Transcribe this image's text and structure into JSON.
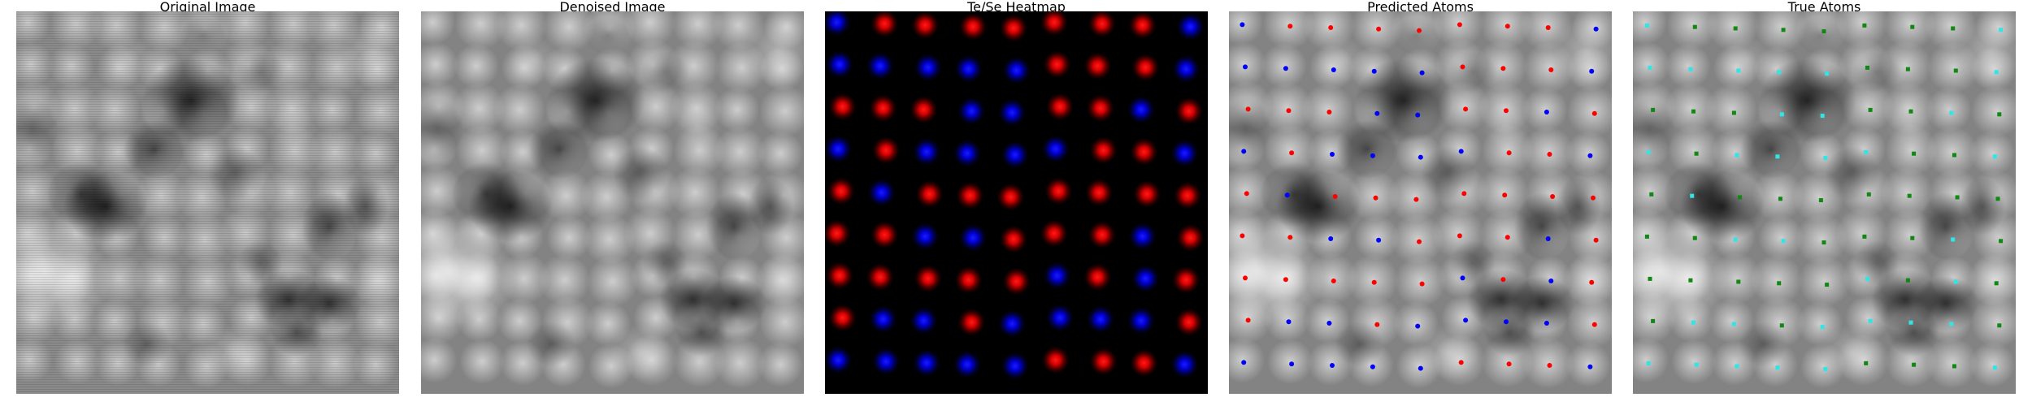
{
  "figure": {
    "panels": [
      {
        "id": "original",
        "title": "Original Image"
      },
      {
        "id": "denoised",
        "title": "Denoised Image"
      },
      {
        "id": "heatmap",
        "title": "Te/Se Heatmap"
      },
      {
        "id": "predicted",
        "title": "Predicted Atoms"
      },
      {
        "id": "true",
        "title": "True Atoms"
      }
    ],
    "colors": {
      "heatmap_red": "#ff1a1a",
      "heatmap_blue": "#1a1aff",
      "pred_red": "#ff0000",
      "pred_blue": "#0000ff",
      "true_cyan": "#2fe6e6",
      "true_green": "#118811"
    }
  }
}
